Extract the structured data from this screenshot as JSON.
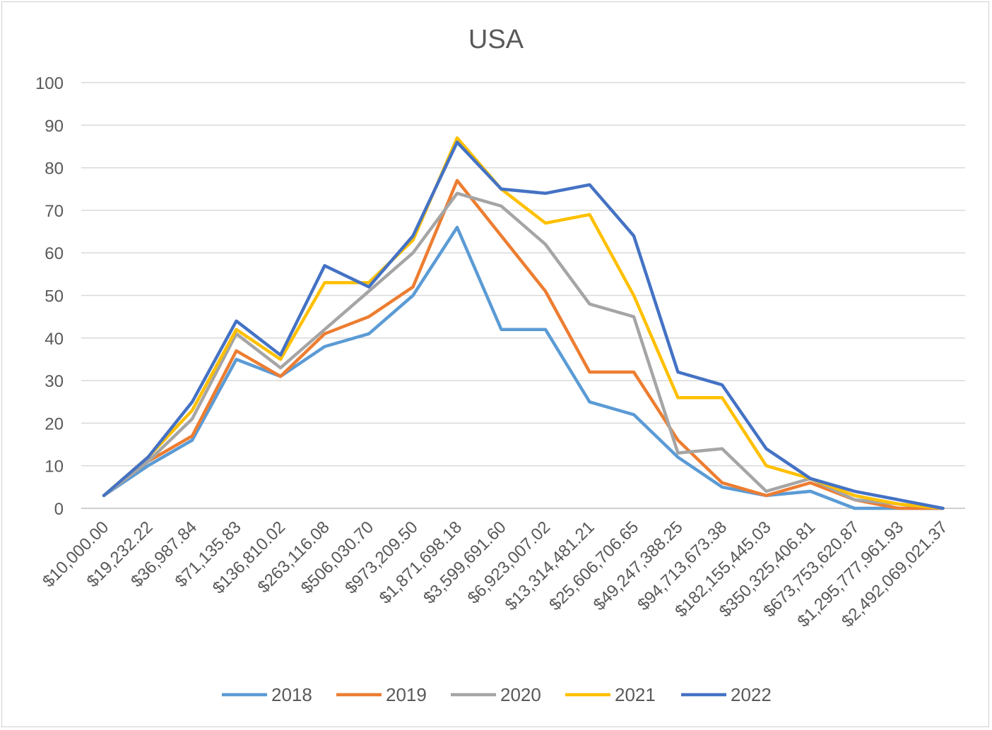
{
  "chart_data": {
    "type": "line",
    "title": "USA",
    "xlabel": "",
    "ylabel": "",
    "ylim": [
      0,
      100
    ],
    "yticks": [
      0,
      10,
      20,
      30,
      40,
      50,
      60,
      70,
      80,
      90,
      100
    ],
    "ytick_labels": [
      "0",
      "10",
      "20",
      "30",
      "40",
      "50",
      "60",
      "70",
      "80",
      "90",
      "100"
    ],
    "grid": true,
    "legend_position": "bottom",
    "categories": [
      "$10,000.00",
      "$19,232.22",
      "$36,987.84",
      "$71,135.83",
      "$136,810.02",
      "$263,116.08",
      "$506,030.70",
      "$973,209.50",
      "$1,871,698.18",
      "$3,599,691.60",
      "$6,923,007.02",
      "$13,314,481.21",
      "$25,606,706.65",
      "$49,247,388.25",
      "$94,713,673.38",
      "$182,155,445.03",
      "$350,325,406.81",
      "$673,753,620.87",
      "$1,295,777,961.93",
      "$2,492,069,021.37"
    ],
    "series": [
      {
        "name": "2018",
        "color": "#5b9bd5",
        "values": [
          3,
          10,
          16,
          35,
          31,
          38,
          41,
          50,
          66,
          42,
          42,
          25,
          22,
          12,
          5,
          3,
          4,
          0,
          0,
          0
        ]
      },
      {
        "name": "2019",
        "color": "#ed7d31",
        "values": [
          3,
          11,
          17,
          37,
          31,
          41,
          45,
          52,
          77,
          64,
          51,
          32,
          32,
          16,
          6,
          3,
          6,
          2,
          0,
          0
        ]
      },
      {
        "name": "2020",
        "color": "#a5a5a5",
        "values": [
          3,
          11,
          21,
          41,
          33,
          42,
          51,
          60,
          74,
          71,
          62,
          48,
          45,
          13,
          14,
          4,
          7,
          2,
          1,
          0
        ]
      },
      {
        "name": "2021",
        "color": "#ffc000",
        "values": [
          3,
          12,
          23,
          42,
          35,
          53,
          53,
          63,
          87,
          75,
          67,
          69,
          50,
          26,
          26,
          10,
          7,
          3,
          1,
          0
        ]
      },
      {
        "name": "2022",
        "color": "#4472c4",
        "values": [
          3,
          12,
          25,
          44,
          36,
          57,
          52,
          64,
          86,
          75,
          74,
          76,
          64,
          32,
          29,
          14,
          7,
          4,
          2,
          0
        ]
      }
    ]
  }
}
